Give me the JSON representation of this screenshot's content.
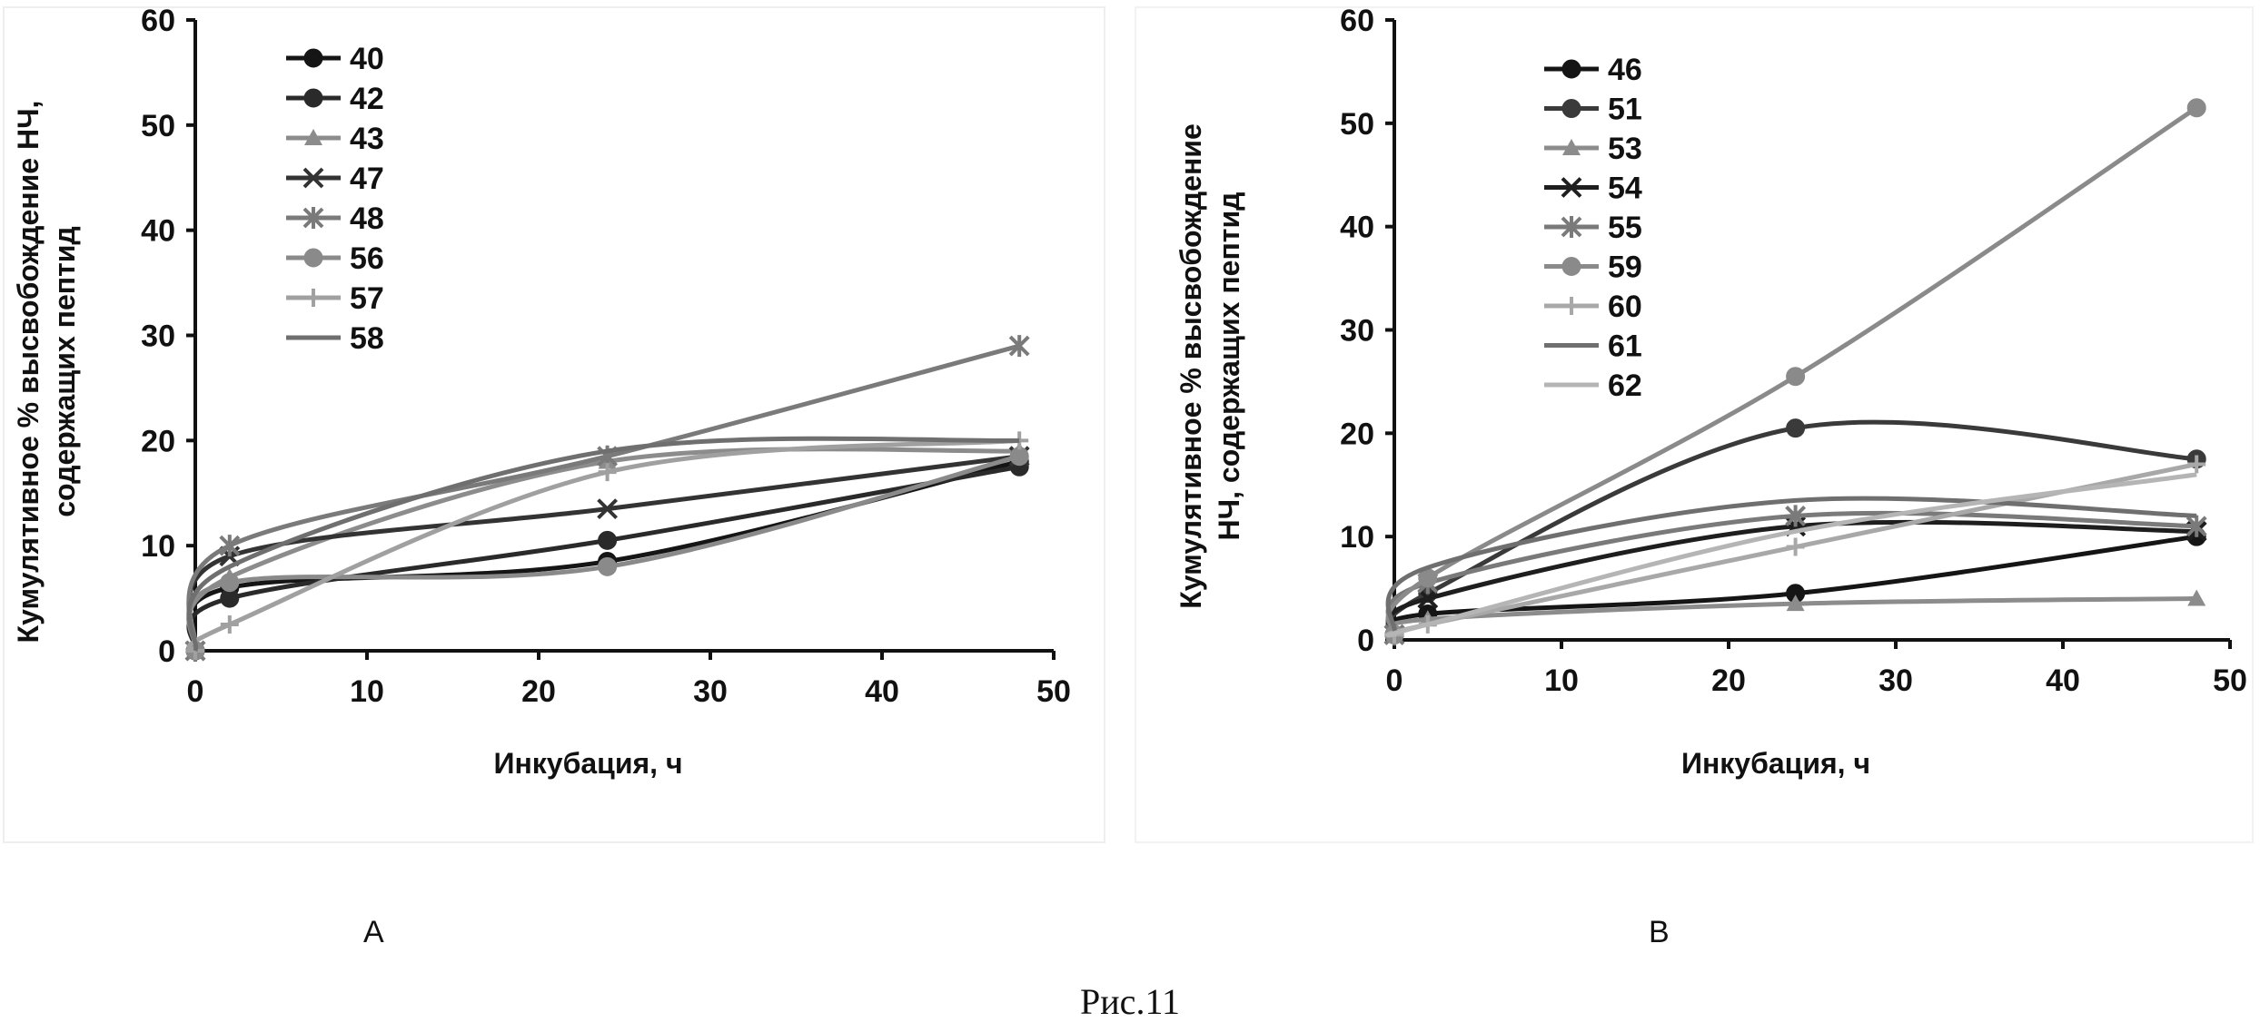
{
  "caption": "Рис.11",
  "chart_data": [
    {
      "type": "line",
      "panel": "A",
      "title": "",
      "xlabel": "Инкубация, ч",
      "ylabel": [
        "Кумулятивное % высвобождение НЧ,",
        "содержащих пептид"
      ],
      "xlim": [
        0,
        50
      ],
      "ylim": [
        0,
        60
      ],
      "xticks": [
        "0",
        "10",
        "20",
        "30",
        "40",
        "50"
      ],
      "yticks": [
        "0",
        "10",
        "20",
        "30",
        "40",
        "50",
        "60"
      ],
      "grid": false,
      "legend_position": "top-left",
      "series": [
        {
          "name": "40",
          "marker": "circle",
          "color": "#151515",
          "x": [
            0,
            2,
            24,
            48
          ],
          "y": [
            0,
            6,
            8.5,
            18
          ]
        },
        {
          "name": "42",
          "marker": "circle",
          "color": "#2a2a2a",
          "x": [
            0,
            2,
            24,
            48
          ],
          "y": [
            0,
            5,
            10.5,
            17.5
          ]
        },
        {
          "name": "43",
          "marker": "triangle",
          "color": "#8c8c8c",
          "x": [
            0,
            2,
            24,
            48
          ],
          "y": [
            0,
            7,
            18,
            19
          ]
        },
        {
          "name": "47",
          "marker": "x",
          "color": "#333333",
          "x": [
            0,
            2,
            24,
            48
          ],
          "y": [
            0,
            9,
            13.5,
            18.5
          ]
        },
        {
          "name": "48",
          "marker": "star",
          "color": "#7a7a7a",
          "x": [
            0,
            2,
            24,
            48
          ],
          "y": [
            0,
            10,
            18.5,
            29
          ]
        },
        {
          "name": "56",
          "marker": "circle",
          "color": "#8a8a8a",
          "x": [
            0,
            2,
            24,
            48
          ],
          "y": [
            0,
            6.5,
            8,
            18.5
          ]
        },
        {
          "name": "57",
          "marker": "plus",
          "color": "#a0a0a0",
          "x": [
            0,
            2,
            24,
            48
          ],
          "y": [
            0,
            2.5,
            17,
            20
          ]
        },
        {
          "name": "58",
          "marker": "none",
          "color": "#6f6f6f",
          "x": [
            0,
            2,
            24,
            48
          ],
          "y": [
            0,
            8,
            19,
            20
          ]
        }
      ]
    },
    {
      "type": "line",
      "panel": "B",
      "title": "",
      "xlabel": "Инкубация, ч",
      "ylabel": [
        "Кумулятивное % высвобождение",
        "НЧ, содержащих пептид"
      ],
      "xlim": [
        0,
        50
      ],
      "ylim": [
        0,
        60
      ],
      "xticks": [
        "0",
        "10",
        "20",
        "30",
        "40",
        "50"
      ],
      "yticks": [
        "0",
        "10",
        "20",
        "30",
        "40",
        "50",
        "60"
      ],
      "grid": false,
      "legend_position": "top-left",
      "series": [
        {
          "name": "46",
          "marker": "circle",
          "color": "#151515",
          "x": [
            0,
            2,
            24,
            48
          ],
          "y": [
            0.5,
            2.5,
            4.5,
            10
          ]
        },
        {
          "name": "51",
          "marker": "circle",
          "color": "#3a3a3a",
          "x": [
            0,
            2,
            24,
            48
          ],
          "y": [
            0.5,
            4.5,
            20.5,
            17.5
          ]
        },
        {
          "name": "53",
          "marker": "triangle",
          "color": "#8c8c8c",
          "x": [
            0,
            2,
            24,
            48
          ],
          "y": [
            0.5,
            2,
            3.5,
            4
          ]
        },
        {
          "name": "54",
          "marker": "x",
          "color": "#1e1e1e",
          "x": [
            0,
            2,
            24,
            48
          ],
          "y": [
            0.5,
            4,
            11,
            10.5
          ]
        },
        {
          "name": "55",
          "marker": "star",
          "color": "#7a7a7a",
          "x": [
            0,
            2,
            24,
            48
          ],
          "y": [
            0.5,
            5.5,
            12,
            11
          ]
        },
        {
          "name": "59",
          "marker": "circle",
          "color": "#8a8a8a",
          "x": [
            0,
            2,
            24,
            48
          ],
          "y": [
            0.5,
            6,
            25.5,
            51.5
          ]
        },
        {
          "name": "60",
          "marker": "plus",
          "color": "#a8a8a8",
          "x": [
            0,
            2,
            24,
            48
          ],
          "y": [
            0.5,
            1.5,
            9,
            17
          ]
        },
        {
          "name": "61",
          "marker": "none",
          "color": "#6f6f6f",
          "x": [
            0,
            2,
            24,
            48
          ],
          "y": [
            0.5,
            7,
            13.5,
            12
          ]
        },
        {
          "name": "62",
          "marker": "none",
          "color": "#b5b5b5",
          "x": [
            0,
            2,
            24,
            48
          ],
          "y": [
            0.5,
            1.5,
            10.5,
            16
          ]
        }
      ]
    }
  ]
}
